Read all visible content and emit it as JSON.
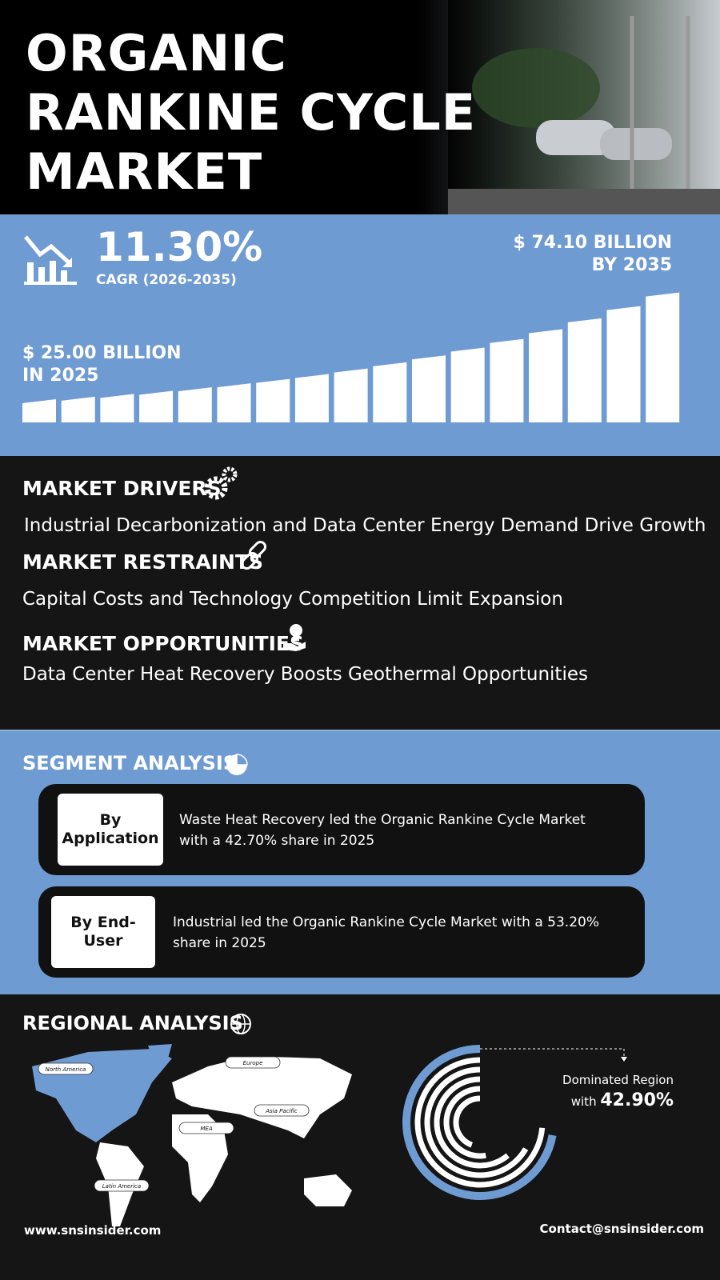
{
  "header": {
    "title_lines": [
      "ORGANIC",
      "RANKINE CYCLE",
      "MARKET"
    ]
  },
  "growth": {
    "cagr": "11.30%",
    "cagr_label": "CAGR (2026-2035)",
    "end_value": "$ 74.10 BILLION",
    "end_year": "BY 2035",
    "start_value": "$ 25.00 BILLION",
    "start_year": "IN 2025"
  },
  "market": {
    "drivers": {
      "heading": "MARKET DRIVERS",
      "text": "Industrial Decarbonization and Data Center Energy Demand Drive Growth"
    },
    "restraints": {
      "heading": "MARKET RESTRAINTS",
      "text": "Capital Costs and Technology Competition Limit Expansion"
    },
    "opportunities": {
      "heading": "MARKET OPPORTUNITIES",
      "text": "Data Center Heat Recovery Boosts Geothermal Opportunities"
    }
  },
  "segment_analysis": {
    "heading": "SEGMENT ANALYSIS",
    "items": [
      {
        "label": "By Application",
        "text": "Waste Heat Recovery led the Organic Rankine Cycle Market with a 42.70% share in 2025"
      },
      {
        "label": "By End-User",
        "text": "Industrial led the Organic Rankine Cycle Market with a 53.20% share in 2025"
      }
    ]
  },
  "regional_analysis": {
    "heading": "REGIONAL ANALYSIS",
    "regions": [
      "North America",
      "Europe",
      "Asia Pacific",
      "MEA",
      "Latin America"
    ],
    "dominated_label": "Dominated Region",
    "dominated_prefix": "with",
    "dominated_share": "42.90%"
  },
  "footer": {
    "website": "www.snsinsider.com",
    "contact": "Contact@snsinsider.com"
  }
}
